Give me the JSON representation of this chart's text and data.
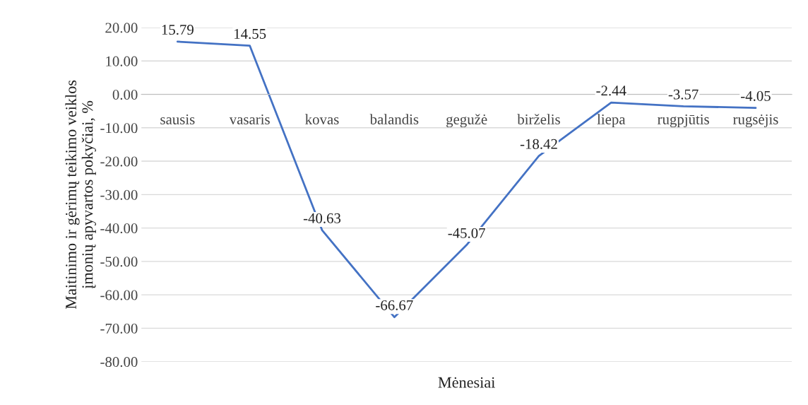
{
  "chart_data": {
    "type": "line",
    "xlabel": "Mėnesiai",
    "ylabel": "Maitinimo ir gėrimų teikimo veiklos\nįmonių apyvartos pokyčiai, %",
    "categories": [
      "sausis",
      "vasaris",
      "kovas",
      "balandis",
      "gegužė",
      "birželis",
      "liepa",
      "rugpjūtis",
      "rugsėjis"
    ],
    "series": [
      {
        "color": "#4472c4",
        "values": [
          15.79,
          14.55,
          -40.63,
          -66.67,
          -45.07,
          -18.42,
          -2.44,
          -3.57,
          -4.05
        ]
      }
    ],
    "ylim": [
      -80,
      20
    ],
    "yticks": [
      {
        "value": -80,
        "label": "-80.00"
      },
      {
        "value": -70,
        "label": "-70.00"
      },
      {
        "value": -60,
        "label": "-60.00"
      },
      {
        "value": -50,
        "label": "-50.00"
      },
      {
        "value": -40,
        "label": "-40.00"
      },
      {
        "value": -30,
        "label": "-30.00"
      },
      {
        "value": -20,
        "label": "-20.00"
      },
      {
        "value": -10,
        "label": "-10.00"
      },
      {
        "value": 0,
        "label": "0.00"
      },
      {
        "value": 10,
        "label": "10.00"
      },
      {
        "value": 20,
        "label": "20.00"
      }
    ],
    "grid": "y",
    "legend": false,
    "marker": "none",
    "line_style": "solid",
    "data_labels": true
  }
}
